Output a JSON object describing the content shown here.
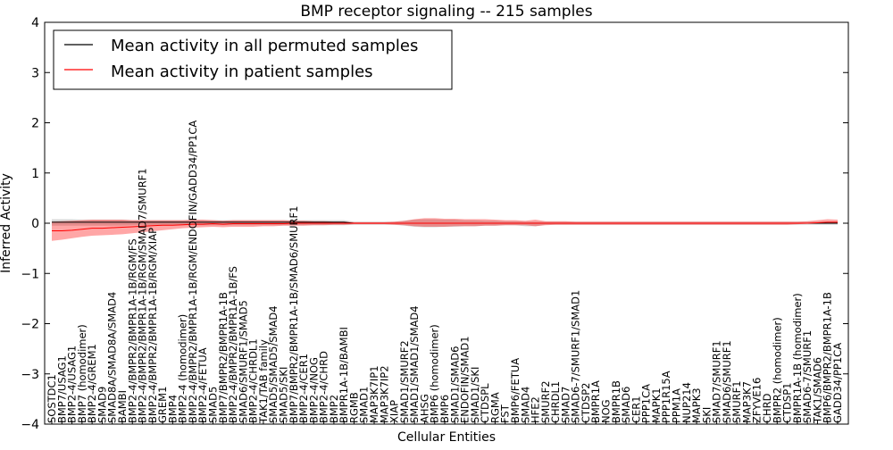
{
  "chart_data": {
    "type": "line",
    "title": "BMP receptor signaling -- 215 samples",
    "xlabel": "Cellular Entities",
    "ylabel": "Inferred Activity",
    "ylim": [
      -4,
      4
    ],
    "yticks": [
      "4",
      "3",
      "2",
      "1",
      "0",
      "−1",
      "−2",
      "−3",
      "−4"
    ],
    "ytick_values": [
      4,
      3,
      2,
      1,
      0,
      -1,
      -2,
      -3,
      -4
    ],
    "legend": {
      "position": "top-left",
      "entries": [
        {
          "label": "Mean activity in all permuted samples",
          "color": "#000000"
        },
        {
          "label": "Mean activity in patient samples",
          "color": "#ff0000"
        }
      ]
    },
    "categories": [
      "SOSTDC1",
      "BMP7/USAG1",
      "BMP2-4/USAG1",
      "BMP7 (homodimer)",
      "BMP2-4/GREM1",
      "SMAD9",
      "SMAD8A/SMAD8A/SMAD4",
      "BAMBI",
      "BMP2-4/BMPR2/BMPR1A-1B/RGM/FS",
      "BMP2-4/BMPR2/BMPR1A-1B/RGM/SMAD7/SMURF1",
      "BMP2-4/BMPR2/BMPR1A-1B/RGM/XIAP",
      "GREM1",
      "BMP4",
      "BMP2-4 (homodimer)",
      "BMP2-4/BMPR2/BMPR1A-1B/RGM/ENDOFIN/GADD34/PP1CA",
      "BMP2-4/FETUA",
      "SMAD5",
      "BMP7/BMPR2/BMPR1A-1B",
      "BMP2-4/BMPR2/BMPR1A-1B/FS",
      "SMAD6/SMURF1/SMAD5",
      "BMP2-4/CHRDL1",
      "TAK1/TAB family",
      "SMAD5/SMAD5/SMAD4",
      "SMAD5/SKI",
      "BMP7/BMPR2/BMPR1A-1B/SMAD6/SMURF1",
      "BMP2-4/CER1",
      "BMP2-4/NOG",
      "BMP2-4/CHRD",
      "BMP2",
      "BMPR1A-1B/BAMBI",
      "RGMB",
      "SMAD1",
      "MAP3K7IP1",
      "MAP3K7IP2",
      "XIAP",
      "SMAD1/SMURF2",
      "SMAD1/SMAD1/SMAD4",
      "AHSG",
      "BMP6 (homodimer)",
      "BMP6",
      "SMAD1/SMAD6",
      "ENDOFIN/SMAD1",
      "SMAD1/SKI",
      "CTDSPL",
      "RGMA",
      "FST",
      "BMP6/FETUA",
      "SMAD4",
      "HFE2",
      "SMURF2",
      "CHRDL1",
      "SMAD7",
      "SMAD6-7/SMURF1/SMAD1",
      "CTDSP2",
      "BMPR1A",
      "NOG",
      "BMPR1B",
      "SMAD6",
      "CER1",
      "PPP1CA",
      "MAPK1",
      "PPP1R15A",
      "PPM1A",
      "NUP214",
      "MAPK3",
      "SKI",
      "SMAD7/SMURF1",
      "SMAD6/SMURF1",
      "SMURF1",
      "MAP3K7",
      "ZFYVE16",
      "CHRD",
      "BMPR2 (homodimer)",
      "CTDSP1",
      "BMPR1A-1B (homodimer)",
      "SMAD6-7/SMURF1",
      "TAK1/SMAD6",
      "BMP6/BMPR2/BMPR1A-1B",
      "GADD34/PP1CA"
    ],
    "series": [
      {
        "name": "Mean activity in all permuted samples",
        "color": "#000000",
        "values": [
          0.02,
          0.02,
          0.02,
          0.02,
          0.02,
          0.02,
          0.02,
          0.02,
          0.02,
          0.02,
          0.02,
          0.02,
          0.02,
          0.02,
          0.02,
          0.02,
          0.02,
          0.02,
          0.02,
          0.02,
          0.02,
          0.02,
          0.02,
          0.02,
          0.02,
          0.02,
          0.02,
          0.02,
          0.02,
          0.02,
          0.0,
          0.0,
          0.0,
          0.0,
          0.0,
          0.0,
          0.0,
          0.0,
          0.0,
          0.0,
          0.0,
          0.0,
          0.0,
          0.0,
          0.0,
          0.0,
          0.0,
          0.0,
          0.0,
          0.0,
          0.0,
          0.0,
          0.0,
          0.0,
          0.0,
          0.0,
          0.0,
          0.0,
          0.0,
          0.0,
          0.0,
          0.0,
          0.0,
          0.0,
          0.0,
          0.0,
          0.0,
          0.0,
          0.0,
          0.0,
          0.0,
          0.0,
          0.0,
          0.0,
          0.0,
          0.0,
          0.0,
          0.0,
          0.0
        ]
      },
      {
        "name": "Mean activity in patient samples",
        "color": "#ff0000",
        "values": [
          -0.15,
          -0.15,
          -0.14,
          -0.12,
          -0.1,
          -0.1,
          -0.09,
          -0.08,
          -0.07,
          -0.06,
          -0.05,
          -0.04,
          -0.04,
          -0.03,
          -0.02,
          -0.02,
          -0.01,
          -0.02,
          -0.01,
          -0.01,
          -0.01,
          -0.01,
          -0.01,
          -0.01,
          0.0,
          0.0,
          0.0,
          0.0,
          0.0,
          0.0,
          0.0,
          0.0,
          0.0,
          0.0,
          0.0,
          0.0,
          0.0,
          0.0,
          0.0,
          0.0,
          0.0,
          0.0,
          0.0,
          0.0,
          0.0,
          0.0,
          0.0,
          0.0,
          0.0,
          0.0,
          0.0,
          0.0,
          0.0,
          0.0,
          0.0,
          0.0,
          0.0,
          0.0,
          0.0,
          0.0,
          0.0,
          0.0,
          0.0,
          0.0,
          0.0,
          0.0,
          0.0,
          0.0,
          0.0,
          0.0,
          0.0,
          0.0,
          0.0,
          0.0,
          0.0,
          0.0,
          0.01,
          0.02,
          0.02
        ]
      }
    ],
    "permuted_band": {
      "upper": [
        0.08,
        0.08,
        0.08,
        0.07,
        0.07,
        0.07,
        0.07,
        0.07,
        0.06,
        0.06,
        0.06,
        0.06,
        0.06,
        0.06,
        0.06,
        0.06,
        0.06,
        0.06,
        0.06,
        0.06,
        0.06,
        0.06,
        0.06,
        0.06,
        0.06,
        0.06,
        0.06,
        0.06,
        0.06,
        0.06,
        0.03,
        0.03,
        0.03,
        0.03,
        0.03,
        0.05,
        0.07,
        0.08,
        0.08,
        0.07,
        0.07,
        0.06,
        0.06,
        0.05,
        0.05,
        0.04,
        0.04,
        0.03,
        0.03,
        0.03,
        0.03,
        0.03,
        0.03,
        0.03,
        0.03,
        0.03,
        0.03,
        0.03,
        0.03,
        0.03,
        0.03,
        0.03,
        0.03,
        0.03,
        0.03,
        0.03,
        0.03,
        0.03,
        0.03,
        0.03,
        0.03,
        0.03,
        0.03,
        0.03,
        0.03,
        0.03,
        0.03,
        0.03,
        0.03
      ],
      "lower": [
        -0.05,
        -0.05,
        -0.05,
        -0.05,
        -0.05,
        -0.05,
        -0.05,
        -0.05,
        -0.04,
        -0.04,
        -0.04,
        -0.04,
        -0.04,
        -0.04,
        -0.04,
        -0.04,
        -0.04,
        -0.04,
        -0.04,
        -0.04,
        -0.04,
        -0.04,
        -0.04,
        -0.04,
        -0.04,
        -0.04,
        -0.04,
        -0.04,
        -0.04,
        -0.04,
        -0.03,
        -0.03,
        -0.03,
        -0.03,
        -0.03,
        -0.05,
        -0.07,
        -0.08,
        -0.08,
        -0.07,
        -0.07,
        -0.06,
        -0.06,
        -0.05,
        -0.05,
        -0.04,
        -0.04,
        -0.06,
        -0.06,
        -0.03,
        -0.03,
        -0.03,
        -0.03,
        -0.03,
        -0.03,
        -0.03,
        -0.03,
        -0.03,
        -0.03,
        -0.03,
        -0.03,
        -0.03,
        -0.03,
        -0.03,
        -0.03,
        -0.03,
        -0.03,
        -0.03,
        -0.03,
        -0.03,
        -0.03,
        -0.03,
        -0.03,
        -0.03,
        -0.03,
        -0.03,
        -0.03,
        -0.03,
        -0.03
      ]
    },
    "patient_band": {
      "upper": [
        0.03,
        0.04,
        0.05,
        0.06,
        0.07,
        0.07,
        0.07,
        0.07,
        0.06,
        0.06,
        0.06,
        0.06,
        0.06,
        0.06,
        0.07,
        0.07,
        0.06,
        0.05,
        0.06,
        0.06,
        0.06,
        0.06,
        0.06,
        0.06,
        0.05,
        0.05,
        0.04,
        0.04,
        0.03,
        0.03,
        0.02,
        0.02,
        0.02,
        0.02,
        0.03,
        0.05,
        0.08,
        0.1,
        0.1,
        0.09,
        0.09,
        0.08,
        0.08,
        0.08,
        0.07,
        0.06,
        0.06,
        0.05,
        0.07,
        0.04,
        0.04,
        0.04,
        0.03,
        0.03,
        0.03,
        0.03,
        0.03,
        0.03,
        0.03,
        0.03,
        0.03,
        0.03,
        0.03,
        0.03,
        0.03,
        0.03,
        0.03,
        0.03,
        0.03,
        0.03,
        0.03,
        0.03,
        0.03,
        0.03,
        0.03,
        0.04,
        0.06,
        0.08,
        0.07
      ],
      "lower": [
        -0.35,
        -0.33,
        -0.3,
        -0.27,
        -0.25,
        -0.24,
        -0.23,
        -0.22,
        -0.2,
        -0.18,
        -0.16,
        -0.14,
        -0.12,
        -0.1,
        -0.09,
        -0.08,
        -0.07,
        -0.08,
        -0.07,
        -0.07,
        -0.07,
        -0.06,
        -0.06,
        -0.05,
        -0.05,
        -0.05,
        -0.04,
        -0.04,
        -0.03,
        -0.03,
        -0.02,
        -0.02,
        -0.02,
        -0.02,
        -0.03,
        -0.04,
        -0.06,
        -0.07,
        -0.07,
        -0.07,
        -0.06,
        -0.06,
        -0.06,
        -0.05,
        -0.05,
        -0.04,
        -0.04,
        -0.04,
        -0.06,
        -0.04,
        -0.03,
        -0.03,
        -0.03,
        -0.03,
        -0.03,
        -0.03,
        -0.03,
        -0.03,
        -0.03,
        -0.03,
        -0.03,
        -0.03,
        -0.03,
        -0.03,
        -0.03,
        -0.03,
        -0.03,
        -0.03,
        -0.03,
        -0.03,
        -0.03,
        -0.03,
        -0.03,
        -0.03,
        -0.02,
        -0.01,
        -0.01,
        -0.01,
        -0.01
      ]
    }
  }
}
